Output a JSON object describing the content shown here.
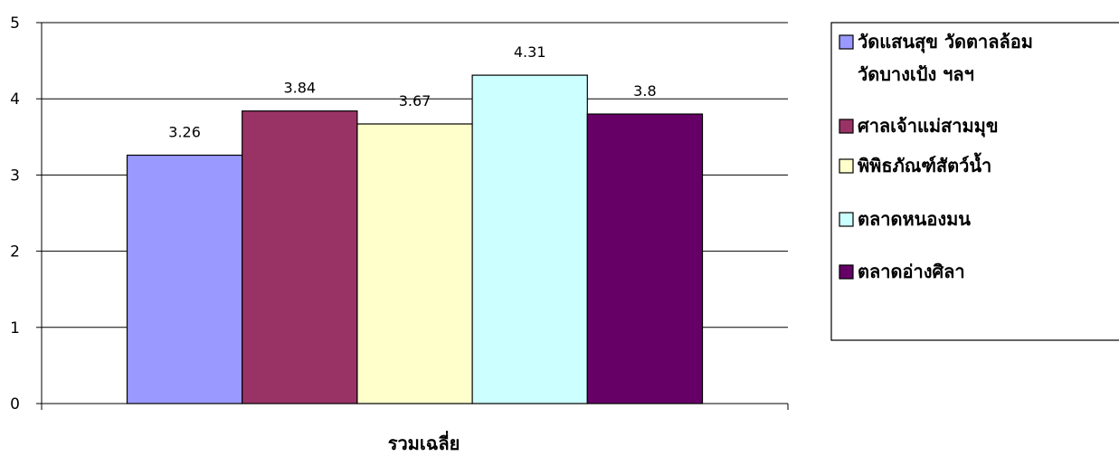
{
  "chart_data": {
    "type": "bar",
    "categories": [
      "รวมเฉลี่ย"
    ],
    "xlabel": "",
    "ylabel": "",
    "ylim": [
      0,
      5
    ],
    "yticks": [
      0,
      1,
      2,
      3,
      4,
      5
    ],
    "grid": true,
    "legend_position": "right",
    "series": [
      {
        "name": "วัดแสนสุข วัดตาลล้อม วัดบางเป้ง ฯลฯ",
        "values": [
          3.26
        ],
        "color": "#9999FF",
        "label": "3.26"
      },
      {
        "name": "ศาลเจ้าแม่สามมุข",
        "values": [
          3.84
        ],
        "color": "#993366",
        "label": "3.84"
      },
      {
        "name": "พิพิธภัณฑ์สัตว์น้ำ",
        "values": [
          3.67
        ],
        "color": "#FFFFCC",
        "label": "3.67"
      },
      {
        "name": "ตลาดหนองมน",
        "values": [
          4.31
        ],
        "color": "#CCFFFF",
        "label": "4.31"
      },
      {
        "name": "ตลาดอ่างศิลา",
        "values": [
          3.8
        ],
        "color": "#660066",
        "label": "3.8"
      }
    ]
  }
}
